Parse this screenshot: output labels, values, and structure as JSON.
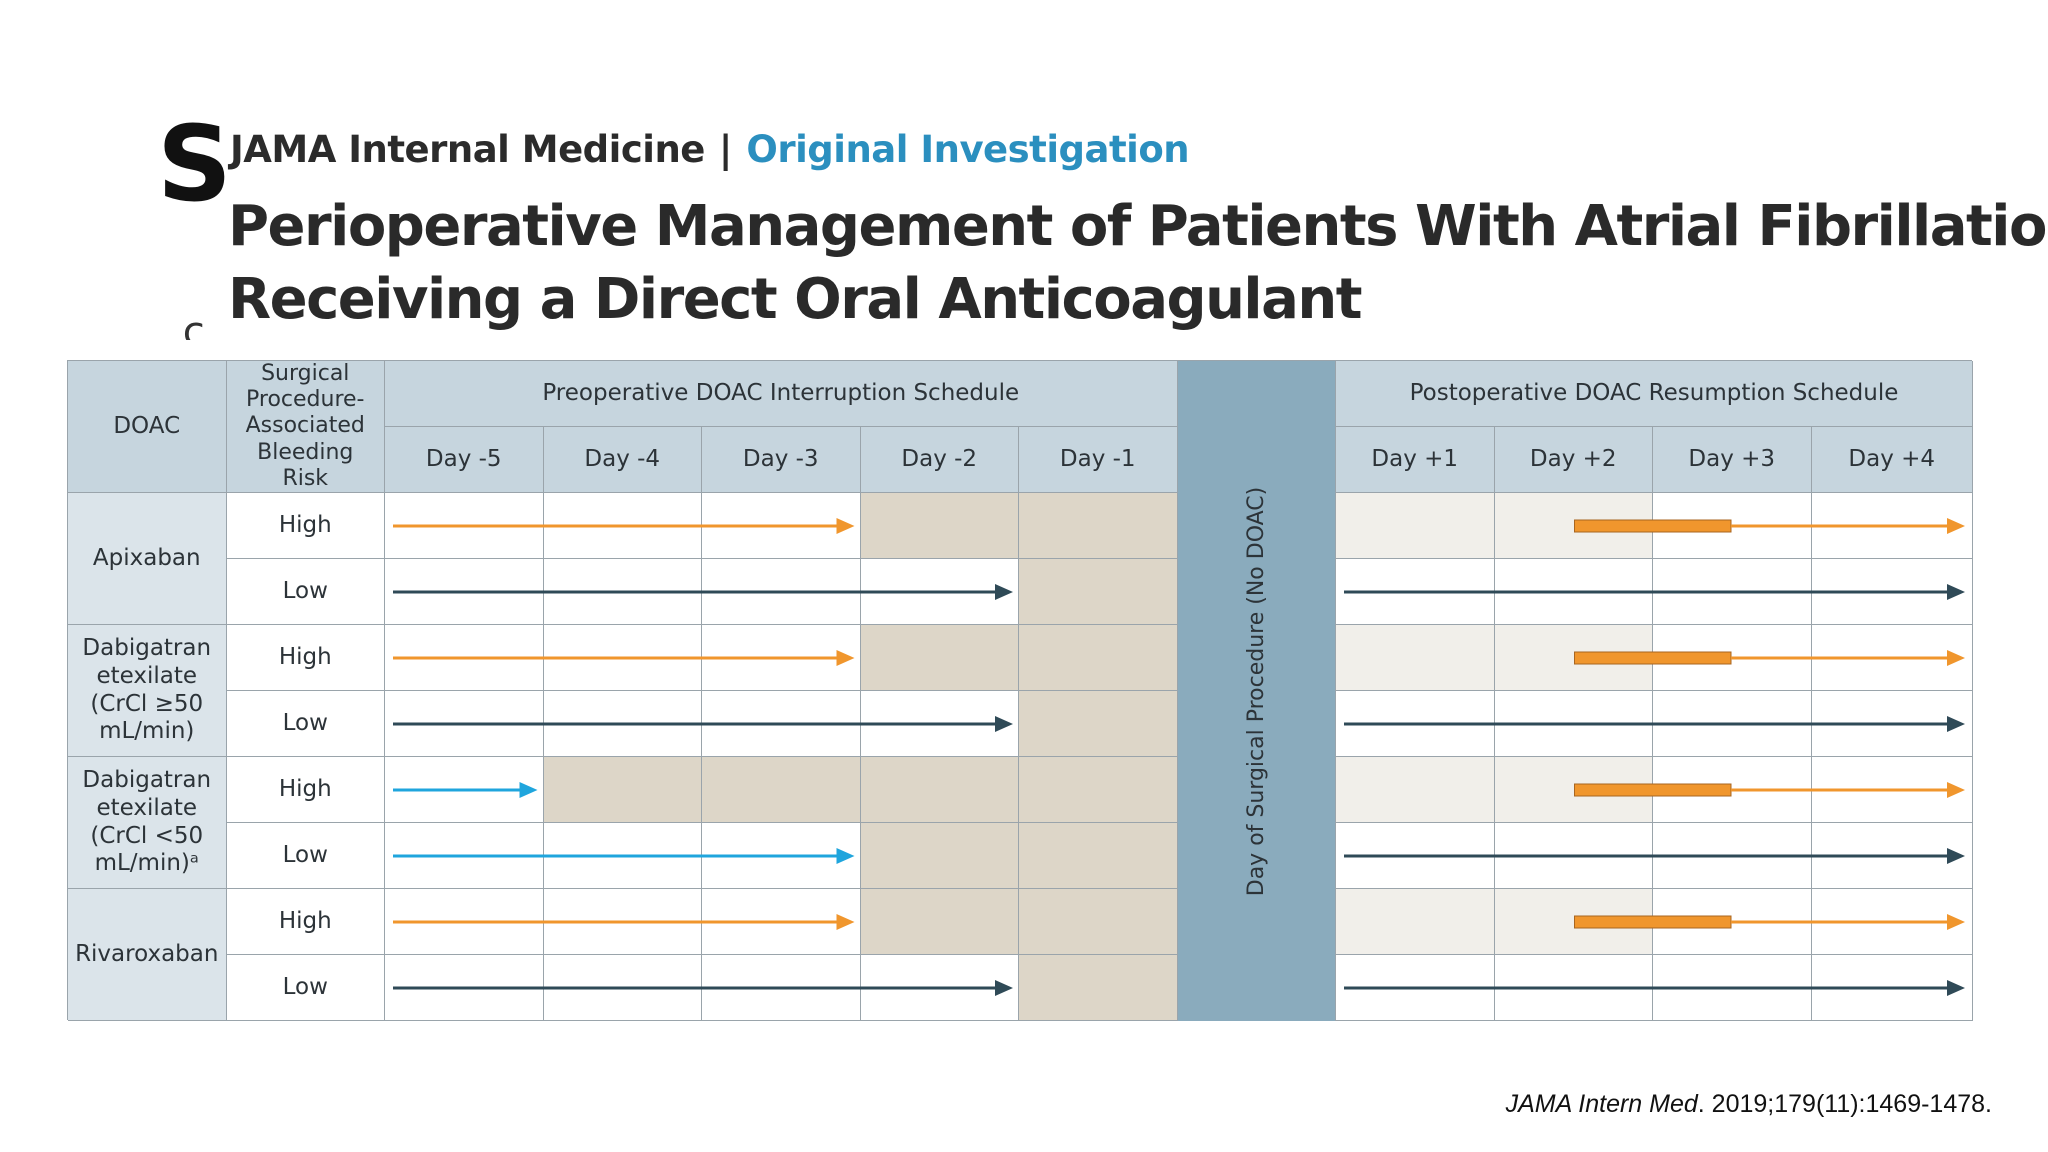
{
  "slide": {
    "title_letter": "S",
    "fragment": "ͺ ς"
  },
  "header": {
    "journal": "JAMA Internal Medicine",
    "separator": "|",
    "section": "Original Investigation",
    "title_line1": "Perioperative Management of Patients With Atrial Fibrillation",
    "title_line2": "Receiving a Direct Oral Anticoagulant"
  },
  "table": {
    "col_doac": "DOAC",
    "col_risk": "Surgical Procedure-Associated Bleeding Risk",
    "pre_header": "Preoperative DOAC Interruption Schedule",
    "post_header": "Postoperative DOAC Resumption Schedule",
    "day_of": "Day of Surgical Procedure (No DOAC)",
    "pre_days": [
      "Day -5",
      "Day -4",
      "Day -3",
      "Day -2",
      "Day -1"
    ],
    "post_days": [
      "Day +1",
      "Day +2",
      "Day +3",
      "Day +4"
    ],
    "drugs": [
      {
        "name": "Apixaban",
        "rows": [
          {
            "risk": "High",
            "pre_until_day": -3,
            "pre_color": "orange",
            "post": "high"
          },
          {
            "risk": "Low",
            "pre_until_day": -2,
            "pre_color": "dark",
            "post": "low"
          }
        ]
      },
      {
        "name": "Dabigatran etexilate (CrCl ≥50 mL/min)",
        "rows": [
          {
            "risk": "High",
            "pre_until_day": -3,
            "pre_color": "orange",
            "post": "high"
          },
          {
            "risk": "Low",
            "pre_until_day": -2,
            "pre_color": "dark",
            "post": "low"
          }
        ]
      },
      {
        "name": "Dabigatran etexilate (CrCl <50 mL/min)ᵃ",
        "rows": [
          {
            "risk": "High",
            "pre_until_day": -5,
            "pre_color": "blue",
            "post": "high"
          },
          {
            "risk": "Low",
            "pre_until_day": -3,
            "pre_color": "blue",
            "post": "low"
          }
        ]
      },
      {
        "name": "Rivaroxaban",
        "rows": [
          {
            "risk": "High",
            "pre_until_day": -3,
            "pre_color": "orange",
            "post": "high"
          },
          {
            "risk": "Low",
            "pre_until_day": -2,
            "pre_color": "dark",
            "post": "low"
          }
        ]
      }
    ]
  },
  "colors": {
    "orange": "#f0962d",
    "dark": "#2f4a57",
    "blue": "#1fa5dd",
    "shade": "#ddd6c8",
    "shade_light": "#f1efea"
  },
  "citation": {
    "journal": "JAMA Intern Med",
    "details": ". 2019;179(11):1469-1478."
  }
}
